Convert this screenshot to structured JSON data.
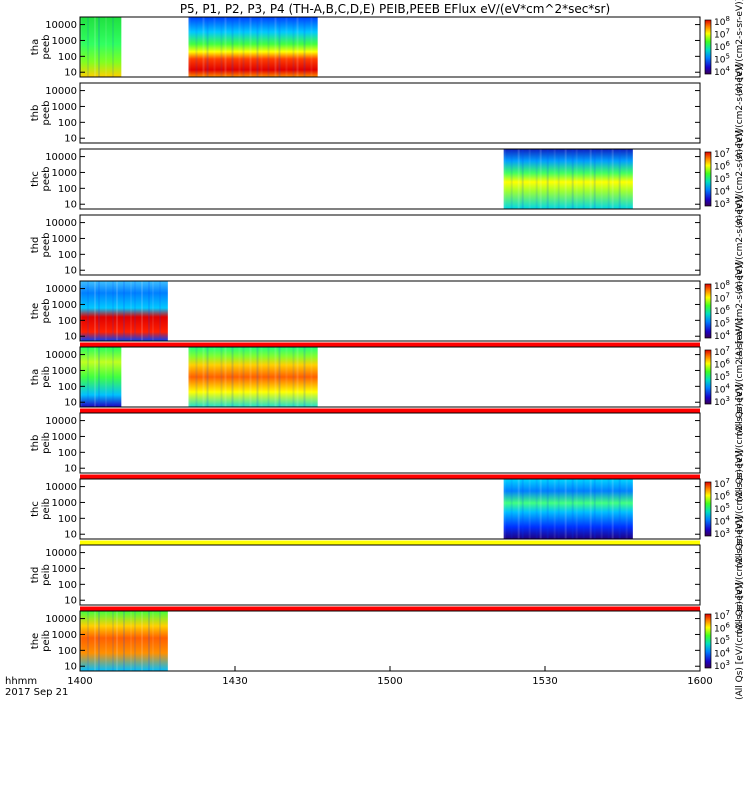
{
  "chart_data": {
    "type": "heatmap",
    "title": "P5, P1, P2, P3, P4 (TH-A,B,C,D,E) PEIB,PEEB EFlux eV/(eV*cm^2*sec*sr)",
    "x_ticks": [
      "1400",
      "1430",
      "1500",
      "1530",
      "1600"
    ],
    "x_range_minutes": [
      0,
      120
    ],
    "x_label_rows": [
      "hhmm",
      "2017 Sep 21"
    ],
    "y_scale": "log",
    "y_range": [
      5,
      30000
    ],
    "y_ticks": [
      "10",
      "100",
      "1000",
      "10000"
    ],
    "panels": [
      {
        "label": [
          "tha",
          "peeb"
        ],
        "cbar_ticks": [
          "10^4",
          "10^5",
          "10^6",
          "10^7",
          "10^8"
        ],
        "cbar_exp": [
          4,
          8
        ],
        "unit": "(A) [eV/(cm2-s-sr-eV)]",
        "blocks": [
          {
            "t": [
              0,
              8
            ],
            "kind": "bg"
          },
          {
            "t": [
              21,
              46
            ],
            "kind": "tha_e"
          }
        ],
        "bar": null
      },
      {
        "label": [
          "thb",
          "peeb"
        ],
        "cbar_ticks": [],
        "cbar_exp": null,
        "unit": "(A) [eV/(cm2-s-sr-eV)]",
        "blocks": [],
        "bar": null
      },
      {
        "label": [
          "thc",
          "peeb"
        ],
        "cbar_ticks": [
          "10^3",
          "10^4",
          "10^5",
          "10^6",
          "10^7"
        ],
        "cbar_exp": [
          3,
          7
        ],
        "unit": "(A) [eV/(cm2-s-sr-eV)]",
        "blocks": [
          {
            "t": [
              82,
              107
            ],
            "kind": "thc_e"
          }
        ],
        "bar": null
      },
      {
        "label": [
          "thd",
          "peeb"
        ],
        "cbar_ticks": [],
        "cbar_exp": null,
        "unit": "(A) [eV/(cm2-s-sr-eV)]",
        "blocks": [],
        "bar": null
      },
      {
        "label": [
          "the",
          "peeb"
        ],
        "cbar_ticks": [
          "10^4",
          "10^5",
          "10^6",
          "10^7",
          "10^8"
        ],
        "cbar_exp": [
          4,
          8
        ],
        "unit": "(A) [eV/(cm2-s-sr-eV)]",
        "blocks": [
          {
            "t": [
              0,
              17
            ],
            "kind": "the_e"
          }
        ],
        "bar": "red"
      },
      {
        "label": [
          "tha",
          "peib"
        ],
        "cbar_ticks": [
          "10^3",
          "10^4",
          "10^5",
          "10^6",
          "10^7"
        ],
        "cbar_exp": [
          3,
          7
        ],
        "unit": "(All Qs) [eV/(cm2-s-sr-eV)]",
        "blocks": [
          {
            "t": [
              0,
              8
            ],
            "kind": "tha_i0"
          },
          {
            "t": [
              21,
              46
            ],
            "kind": "tha_i"
          }
        ],
        "bar": "red"
      },
      {
        "label": [
          "thb",
          "peib"
        ],
        "cbar_ticks": [],
        "cbar_exp": null,
        "unit": "(All Qs) [eV/(cm2-s-sr-eV)]",
        "blocks": [],
        "bar": "red"
      },
      {
        "label": [
          "thc",
          "peib"
        ],
        "cbar_ticks": [
          "10^3",
          "10^4",
          "10^5",
          "10^6",
          "10^7"
        ],
        "cbar_exp": [
          3,
          7
        ],
        "unit": "(All Qs) [eV/(cm2-s-sr-eV)]",
        "blocks": [
          {
            "t": [
              82,
              107
            ],
            "kind": "thc_i"
          }
        ],
        "bar": "yellow"
      },
      {
        "label": [
          "thd",
          "peib"
        ],
        "cbar_ticks": [],
        "cbar_exp": null,
        "unit": "(All Qs) [eV/(cm2-s-sr-eV)]",
        "blocks": [],
        "bar": "red"
      },
      {
        "label": [
          "the",
          "peib"
        ],
        "cbar_ticks": [
          "10^3",
          "10^4",
          "10^5",
          "10^6",
          "10^7"
        ],
        "cbar_exp": [
          3,
          7
        ],
        "unit": "(All Qs) [eV/(cm2-s-sr-eV)]",
        "blocks": [
          {
            "t": [
              0,
              17
            ],
            "kind": "the_i"
          }
        ],
        "bar": null
      }
    ]
  }
}
